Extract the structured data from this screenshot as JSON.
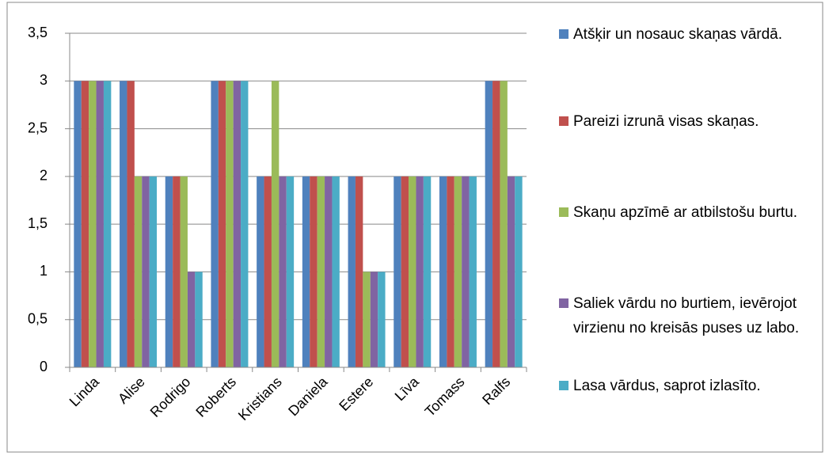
{
  "chart_data": {
    "type": "bar",
    "categories": [
      "Linda",
      "Alise",
      "Rodrigo",
      "Roberts",
      "Kristians",
      "Daniela",
      "Estere",
      "Līva",
      "Tomass",
      "Ralfs"
    ],
    "series": [
      {
        "name": "Atšķir un nosauc skaņas vārdā.",
        "color": "#4f81bd",
        "values": [
          3,
          3,
          2,
          3,
          2,
          2,
          2,
          2,
          2,
          3
        ]
      },
      {
        "name": "Pareizi izrunā visas skaņas.",
        "color": "#c0504d",
        "values": [
          3,
          3,
          2,
          3,
          2,
          2,
          2,
          2,
          2,
          3
        ]
      },
      {
        "name": "Skaņu apzīmē ar atbilstošu burtu.",
        "color": "#9bbb59",
        "values": [
          3,
          2,
          2,
          3,
          3,
          2,
          1,
          2,
          2,
          3
        ]
      },
      {
        "name": "Saliek vārdu no burtiem, ievērojot virzienu no kreisās puses uz labo.",
        "color": "#8064a2",
        "values": [
          3,
          2,
          1,
          3,
          2,
          2,
          1,
          2,
          2,
          2
        ]
      },
      {
        "name": "Lasa vārdus, saprot izlasīto.",
        "color": "#4bacc6",
        "values": [
          3,
          2,
          1,
          3,
          2,
          2,
          1,
          2,
          2,
          2
        ]
      }
    ],
    "ylim": [
      0,
      3.5
    ],
    "yticks": [
      0,
      {
        "value": 0.5,
        "label": "0,5"
      },
      1,
      {
        "value": 1.5,
        "label": "1,5"
      },
      2,
      {
        "value": 2.5,
        "label": "2,5"
      },
      3,
      {
        "value": 3.5,
        "label": "3,5"
      }
    ],
    "grid": true,
    "legend": "right"
  }
}
